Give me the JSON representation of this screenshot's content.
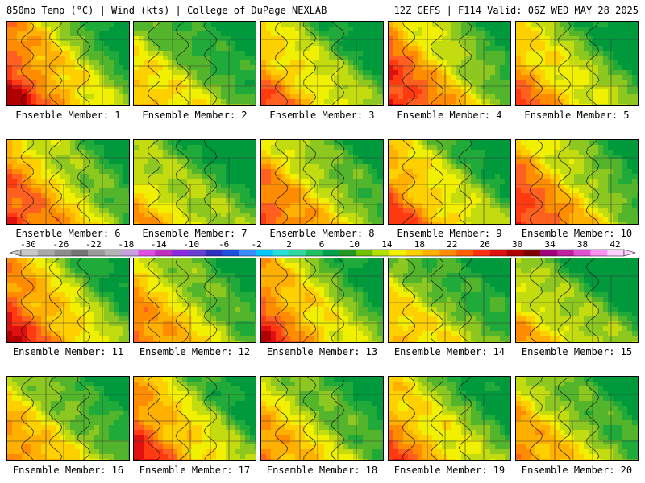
{
  "header": {
    "left": "850mb Temp (°C) | Wind (kts) | College of DuPage NEXLAB",
    "right": "12Z GEFS | F114 Valid: 06Z WED MAY 28 2025"
  },
  "members": [
    {
      "label": "Ensemble Member: 1",
      "warmth": 0.78
    },
    {
      "label": "Ensemble Member: 2",
      "warmth": 0.45
    },
    {
      "label": "Ensemble Member: 3",
      "warmth": 0.6
    },
    {
      "label": "Ensemble Member: 4",
      "warmth": 0.75
    },
    {
      "label": "Ensemble Member: 5",
      "warmth": 0.6
    },
    {
      "label": "Ensemble Member: 6",
      "warmth": 0.7
    },
    {
      "label": "Ensemble Member: 7",
      "warmth": 0.45
    },
    {
      "label": "Ensemble Member: 8",
      "warmth": 0.65
    },
    {
      "label": "Ensemble Member: 9",
      "warmth": 0.65
    },
    {
      "label": "Ensemble Member: 10",
      "warmth": 0.72
    },
    {
      "label": "Ensemble Member: 11",
      "warmth": 0.75
    },
    {
      "label": "Ensemble Member: 12",
      "warmth": 0.6
    },
    {
      "label": "Ensemble Member: 13",
      "warmth": 0.7
    },
    {
      "label": "Ensemble Member: 14",
      "warmth": 0.45
    },
    {
      "label": "Ensemble Member: 15",
      "warmth": 0.45
    },
    {
      "label": "Ensemble Member: 16",
      "warmth": 0.55
    },
    {
      "label": "Ensemble Member: 17",
      "warmth": 0.72
    },
    {
      "label": "Ensemble Member: 18",
      "warmth": 0.55
    },
    {
      "label": "Ensemble Member: 19",
      "warmth": 0.62
    },
    {
      "label": "Ensemble Member: 20",
      "warmth": 0.55
    }
  ],
  "colorbar": {
    "labels": [
      "-30",
      "-26",
      "-22",
      "-18",
      "-14",
      "-10",
      "-6",
      "-2",
      "2",
      "6",
      "10",
      "14",
      "18",
      "22",
      "26",
      "30",
      "34",
      "38",
      "42"
    ],
    "colors": [
      "#c8c8c8",
      "#a8a8a8",
      "#8c8c8c",
      "#747474",
      "#9a9a9a",
      "#b4b4b4",
      "#c8a0e0",
      "#e050e0",
      "#c030c0",
      "#8a2be2",
      "#6a3fd0",
      "#3030c0",
      "#2050e0",
      "#3c8cff",
      "#00c8ff",
      "#28e0d8",
      "#30d8a0",
      "#20c060",
      "#00a050",
      "#209a20",
      "#70c000",
      "#b4e000",
      "#f0f000",
      "#ffd000",
      "#ffb000",
      "#ff8c00",
      "#ff6000",
      "#ff3010",
      "#e01010",
      "#b00000",
      "#800000",
      "#a0007a",
      "#c020a0",
      "#e050d0",
      "#ff90f0",
      "#ffd0ff"
    ]
  }
}
